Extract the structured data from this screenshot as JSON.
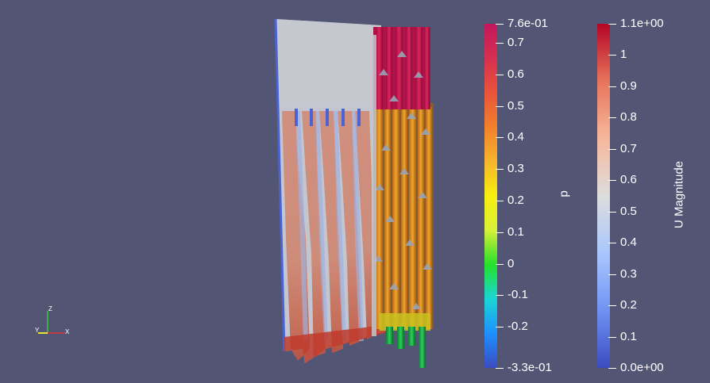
{
  "viewport": {
    "background": "#525674"
  },
  "p_legend": {
    "title": "p",
    "colors": [
      "#3a4cc0",
      "#1e8fff",
      "#19d6d6",
      "#25e02a",
      "#d8f038",
      "#f7ee0f",
      "#f5b52a",
      "#f3802c",
      "#e8543a",
      "#d62f4f",
      "#c2185b"
    ],
    "ticks": [
      {
        "value": 0.76,
        "label": "7.6e-01"
      },
      {
        "value": 0.7,
        "label": "0.7"
      },
      {
        "value": 0.6,
        "label": "0.6"
      },
      {
        "value": 0.5,
        "label": "0.5"
      },
      {
        "value": 0.4,
        "label": "0.4"
      },
      {
        "value": 0.3,
        "label": "0.3"
      },
      {
        "value": 0.2,
        "label": "0.2"
      },
      {
        "value": 0.1,
        "label": "0.1"
      },
      {
        "value": 0,
        "label": "0"
      },
      {
        "value": -0.1,
        "label": "-0.1"
      },
      {
        "value": -0.2,
        "label": "-0.2"
      },
      {
        "value": -0.33,
        "label": "-3.3e-01"
      }
    ],
    "range": [
      -0.33,
      0.76
    ]
  },
  "u_legend": {
    "title": "U Magnitude",
    "colors": [
      "#3b4cc0",
      "#6f92f3",
      "#aac7fd",
      "#dddddd",
      "#f7b89c",
      "#e7745b",
      "#b40426"
    ],
    "ticks": [
      {
        "value": 1.1,
        "label": "1.1e+00"
      },
      {
        "value": 1.0,
        "label": "1"
      },
      {
        "value": 0.9,
        "label": "0.9"
      },
      {
        "value": 0.8,
        "label": "0.8"
      },
      {
        "value": 0.7,
        "label": "0.7"
      },
      {
        "value": 0.6,
        "label": "0.6"
      },
      {
        "value": 0.5,
        "label": "0.5"
      },
      {
        "value": 0.4,
        "label": "0.4"
      },
      {
        "value": 0.3,
        "label": "0.3"
      },
      {
        "value": 0.2,
        "label": "0.2"
      },
      {
        "value": 0.1,
        "label": "0.1"
      },
      {
        "value": 0.0,
        "label": "0.0e+00"
      }
    ],
    "range": [
      0.0,
      1.1
    ]
  },
  "axes": {
    "z_label": "Z",
    "y_label": "Y",
    "x_label": "X"
  }
}
